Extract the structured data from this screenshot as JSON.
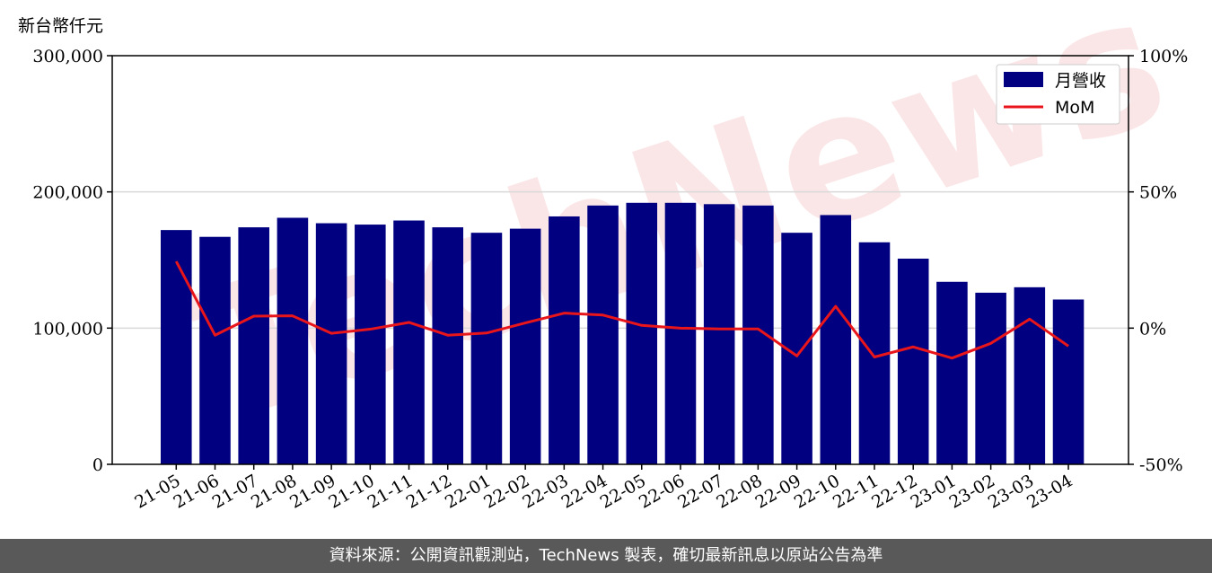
{
  "y_unit_label": "新台幣仟元",
  "watermark": "TechNews",
  "footer": "資料來源：公開資訊觀測站，TechNews 製表，確切最新訊息以原站公告為準",
  "colors": {
    "bar": "#000080",
    "line": "#e8161b",
    "grid": "#d9d9d9"
  },
  "chart_data": {
    "type": "bar",
    "categories": [
      "21-05",
      "21-06",
      "21-07",
      "21-08",
      "21-09",
      "21-10",
      "21-11",
      "21-12",
      "22-01",
      "22-02",
      "22-03",
      "22-04",
      "22-05",
      "22-06",
      "22-07",
      "22-08",
      "22-09",
      "22-10",
      "22-11",
      "22-12",
      "23-01",
      "23-02",
      "23-03",
      "23-04"
    ],
    "series": [
      {
        "name": "月營收",
        "type": "bar",
        "axis": "left",
        "values": [
          172000,
          167000,
          174000,
          181000,
          177000,
          176000,
          179000,
          174000,
          170000,
          173000,
          182000,
          190000,
          192000,
          192000,
          191000,
          190000,
          170000,
          183000,
          163000,
          151000,
          134000,
          126000,
          130000,
          121000
        ]
      },
      {
        "name": "MoM",
        "type": "line",
        "axis": "right",
        "values": [
          24.5,
          -2.6,
          4.4,
          4.5,
          -1.9,
          -0.4,
          2.1,
          -2.6,
          -1.8,
          1.9,
          5.5,
          4.8,
          1.0,
          0.0,
          -0.3,
          -0.3,
          -10.2,
          8.0,
          -10.6,
          -6.9,
          -11.0,
          -5.6,
          3.3,
          -6.6
        ]
      }
    ],
    "left_axis": {
      "min": 0,
      "max": 300000,
      "ticks": [
        "0",
        "100,000",
        "200,000",
        "300,000"
      ]
    },
    "right_axis": {
      "min": -50,
      "max": 100,
      "ticks": [
        "-50%",
        "0%",
        "50%",
        "100%"
      ]
    },
    "grid": true,
    "legend_position": "top-right"
  }
}
